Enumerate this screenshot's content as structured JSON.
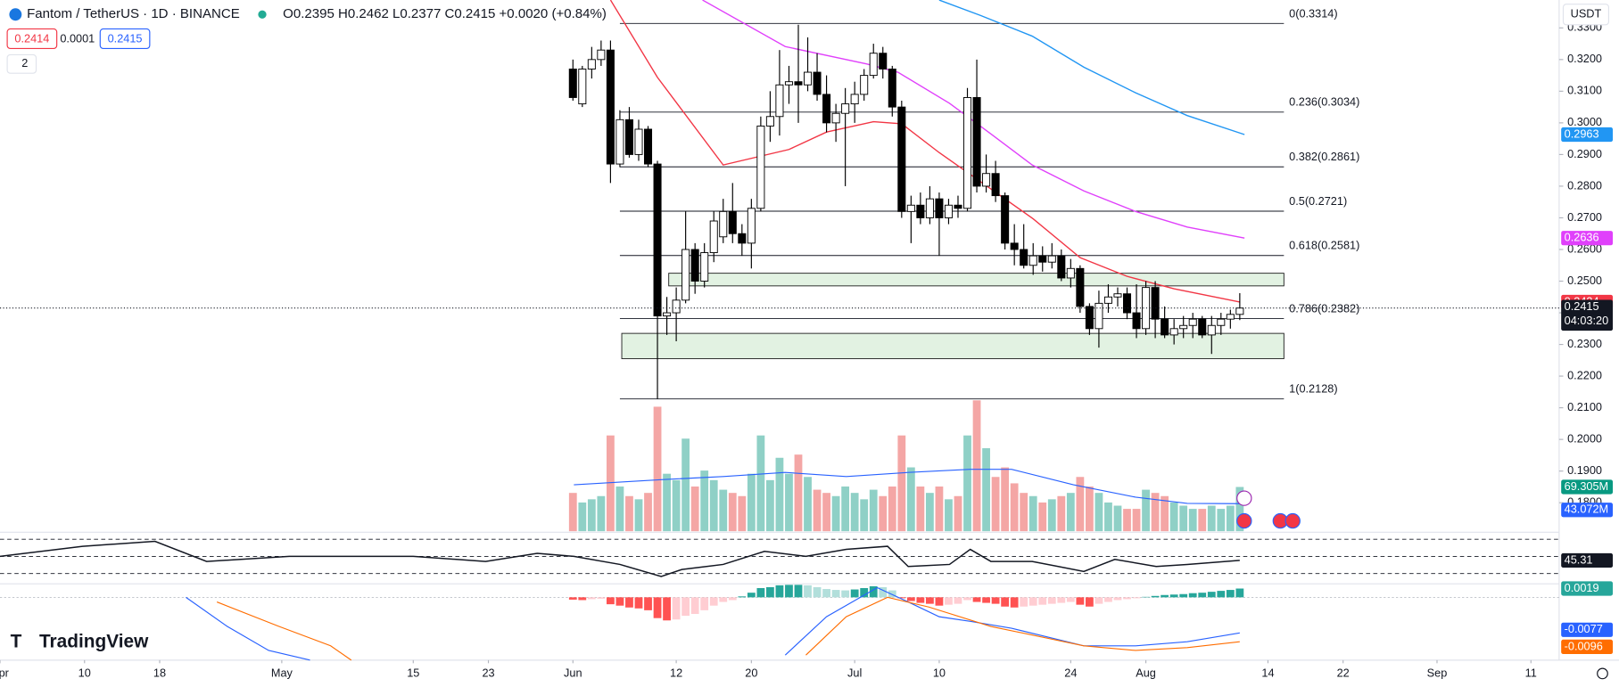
{
  "header": {
    "symbol": "Fantom / TetherUS · 1D · BINANCE",
    "ohlc": "O0.2395 H0.2462 L0.2377 C0.2415 +0.0020 (+0.84%)",
    "bid": "0.2414",
    "spread": "0.0001",
    "ask": "0.2415",
    "indicators_count": "2",
    "currency": "USDT",
    "countdown": "04:03:20",
    "brand": "TradingView"
  },
  "chart_data": [
    {
      "type": "candlestick",
      "up_color": "#ffffff",
      "down_color": "#000000",
      "grid": false,
      "x": [
        61,
        62,
        63,
        64,
        65,
        66,
        67,
        68,
        69,
        70,
        71,
        72,
        73,
        74,
        75,
        76,
        77,
        78,
        79,
        80,
        81,
        82,
        83,
        84,
        85,
        86,
        87,
        88,
        89,
        90,
        91,
        92,
        93,
        94,
        95,
        96,
        97,
        98,
        99,
        100,
        101,
        102,
        103,
        104,
        105,
        106,
        107,
        108,
        109,
        110,
        111,
        112,
        113,
        114,
        115,
        116,
        117,
        118,
        119,
        120,
        121,
        122,
        123,
        124,
        125,
        126,
        127,
        128,
        129,
        130,
        131,
        132
      ],
      "open": [
        0.317,
        0.306,
        0.317,
        0.32,
        0.323,
        0.287,
        0.301,
        0.29,
        0.298,
        0.287,
        0.239,
        0.24,
        0.244,
        0.26,
        0.25,
        0.259,
        0.264,
        0.272,
        0.265,
        0.262,
        0.273,
        0.299,
        0.302,
        0.312,
        0.313,
        0.312,
        0.316,
        0.309,
        0.3,
        0.303,
        0.306,
        0.309,
        0.315,
        0.322,
        0.317,
        0.305,
        0.272,
        0.274,
        0.27,
        0.276,
        0.27,
        0.274,
        0.273,
        0.308,
        0.28,
        0.284,
        0.277,
        0.262,
        0.26,
        0.255,
        0.258,
        0.256,
        0.258,
        0.251,
        0.254,
        0.242,
        0.235,
        0.243,
        0.245,
        0.246,
        0.24,
        0.235,
        0.248,
        0.238,
        0.233,
        0.235,
        0.236,
        0.238,
        0.233,
        0.236,
        0.238,
        0.2395
      ],
      "high": [
        0.32,
        0.318,
        0.324,
        0.326,
        0.326,
        0.304,
        0.305,
        0.301,
        0.299,
        0.288,
        0.245,
        0.248,
        0.272,
        0.262,
        0.262,
        0.272,
        0.276,
        0.281,
        0.268,
        0.276,
        0.302,
        0.31,
        0.323,
        0.318,
        0.331,
        0.327,
        0.322,
        0.315,
        0.306,
        0.311,
        0.313,
        0.317,
        0.325,
        0.324,
        0.318,
        0.307,
        0.277,
        0.278,
        0.28,
        0.278,
        0.276,
        0.277,
        0.311,
        0.32,
        0.29,
        0.288,
        0.278,
        0.268,
        0.268,
        0.262,
        0.261,
        0.262,
        0.26,
        0.257,
        0.255,
        0.243,
        0.247,
        0.249,
        0.248,
        0.248,
        0.249,
        0.25,
        0.25,
        0.242,
        0.238,
        0.239,
        0.24,
        0.239,
        0.239,
        0.24,
        0.241,
        0.2462
      ],
      "low": [
        0.307,
        0.305,
        0.314,
        0.318,
        0.281,
        0.286,
        0.289,
        0.288,
        0.286,
        0.2128,
        0.233,
        0.231,
        0.243,
        0.246,
        0.248,
        0.256,
        0.262,
        0.262,
        0.258,
        0.254,
        0.272,
        0.294,
        0.296,
        0.306,
        0.3,
        0.31,
        0.307,
        0.297,
        0.294,
        0.28,
        0.3,
        0.307,
        0.314,
        0.314,
        0.302,
        0.27,
        0.262,
        0.268,
        0.268,
        0.258,
        0.268,
        0.27,
        0.272,
        0.278,
        0.278,
        0.275,
        0.26,
        0.255,
        0.254,
        0.252,
        0.253,
        0.254,
        0.25,
        0.248,
        0.24,
        0.233,
        0.229,
        0.24,
        0.242,
        0.238,
        0.232,
        0.233,
        0.232,
        0.232,
        0.23,
        0.232,
        0.232,
        0.232,
        0.227,
        0.233,
        0.235,
        0.2377
      ],
      "close": [
        0.308,
        0.317,
        0.32,
        0.323,
        0.287,
        0.301,
        0.29,
        0.298,
        0.287,
        0.239,
        0.24,
        0.244,
        0.26,
        0.25,
        0.259,
        0.269,
        0.272,
        0.265,
        0.262,
        0.273,
        0.299,
        0.302,
        0.312,
        0.313,
        0.312,
        0.316,
        0.309,
        0.3,
        0.303,
        0.306,
        0.309,
        0.315,
        0.322,
        0.317,
        0.305,
        0.272,
        0.274,
        0.27,
        0.276,
        0.27,
        0.274,
        0.273,
        0.308,
        0.28,
        0.284,
        0.277,
        0.262,
        0.26,
        0.255,
        0.258,
        0.256,
        0.258,
        0.251,
        0.254,
        0.242,
        0.235,
        0.243,
        0.245,
        0.246,
        0.24,
        0.235,
        0.248,
        0.238,
        0.233,
        0.235,
        0.236,
        0.238,
        0.233,
        0.236,
        0.238,
        0.2395,
        0.2415
      ],
      "xlim": [
        0,
        166
      ],
      "xticks": [
        {
          "value": 0,
          "label": "Apr"
        },
        {
          "value": 9,
          "label": "10"
        },
        {
          "value": 17,
          "label": "18"
        },
        {
          "value": 30,
          "label": "May"
        },
        {
          "value": 44,
          "label": "15"
        },
        {
          "value": 52,
          "label": "23"
        },
        {
          "value": 61,
          "label": "Jun"
        },
        {
          "value": 72,
          "label": "12"
        },
        {
          "value": 80,
          "label": "20"
        },
        {
          "value": 91,
          "label": "Jul"
        },
        {
          "value": 100,
          "label": "10"
        },
        {
          "value": 114,
          "label": "24"
        },
        {
          "value": 122,
          "label": "Aug"
        },
        {
          "value": 135,
          "label": "14"
        },
        {
          "value": 143,
          "label": "22"
        },
        {
          "value": 153,
          "label": "Sep"
        },
        {
          "value": 163,
          "label": "11"
        }
      ],
      "ylim": [
        0.171,
        0.3388
      ],
      "yticks": [
        {
          "value": 0.18,
          "label": "0.1800"
        },
        {
          "value": 0.19,
          "label": "0.1900"
        },
        {
          "value": 0.2,
          "label": "0.2000"
        },
        {
          "value": 0.21,
          "label": "0.2100"
        },
        {
          "value": 0.22,
          "label": "0.2200"
        },
        {
          "value": 0.23,
          "label": "0.2300"
        },
        {
          "value": 0.24,
          "label": "0.2400"
        },
        {
          "value": 0.25,
          "label": "0.2500"
        },
        {
          "value": 0.26,
          "label": "0.2600"
        },
        {
          "value": 0.27,
          "label": "0.2700"
        },
        {
          "value": 0.28,
          "label": "0.2800"
        },
        {
          "value": 0.29,
          "label": "0.2900"
        },
        {
          "value": 0.3,
          "label": "0.3000"
        },
        {
          "value": 0.31,
          "label": "0.3100"
        },
        {
          "value": 0.32,
          "label": "0.3200"
        },
        {
          "value": 0.33,
          "label": "0.3300"
        }
      ],
      "moving_averages": [
        {
          "color": "#f23645",
          "x": [
            65,
            70,
            77,
            84,
            88,
            93,
            96,
            100,
            105,
            110,
            115,
            120,
            125,
            132
          ],
          "values": [
            0.3388,
            0.3144,
            0.2867,
            0.2916,
            0.2971,
            0.3004,
            0.2997,
            0.2906,
            0.2802,
            0.2697,
            0.2574,
            0.2515,
            0.2476,
            0.2434
          ]
        },
        {
          "color": "#e040fb",
          "x": [
            74.8,
            83.6,
            92.3,
            95.6,
            101.1,
            105.5,
            109.9,
            115.4,
            120.9,
            126.4,
            132.5
          ],
          "values": [
            0.3388,
            0.3241,
            0.3186,
            0.316,
            0.3062,
            0.2965,
            0.2867,
            0.2785,
            0.272,
            0.2671,
            0.2636
          ]
        },
        {
          "color": "#2196f3",
          "x": [
            100,
            104.4,
            109.9,
            115.4,
            120.9,
            126.4,
            132.5
          ],
          "values": [
            0.3388,
            0.3339,
            0.3274,
            0.3176,
            0.3095,
            0.3023,
            0.2963
          ]
        }
      ],
      "fib_range": [
        66,
        136.7
      ],
      "fib_levels": [
        {
          "label": "0(0.3314)",
          "value": 0.3314
        },
        {
          "label": "0.236(0.3034)",
          "value": 0.3034
        },
        {
          "label": "0.382(0.2861)",
          "value": 0.2861
        },
        {
          "label": "0.5(0.2721)",
          "value": 0.2721
        },
        {
          "label": "0.618(0.2581)",
          "value": 0.2581
        },
        {
          "label": "0.786(0.2382)",
          "value": 0.2382
        },
        {
          "label": "1(0.2128)",
          "value": 0.2128
        }
      ],
      "zones": [
        {
          "x_range": [
            71.2,
            136.7
          ],
          "y_range": [
            0.2485,
            0.2525
          ]
        },
        {
          "x_range": [
            66.2,
            136.7
          ],
          "y_range": [
            0.2255,
            0.2335
          ]
        }
      ],
      "zone_color": "#e2f2e2"
    },
    {
      "type": "volume",
      "up_color": "#8fd0c6",
      "down_color": "#f4a6a5",
      "last_color": "#089981",
      "ylim": [
        0,
        210
      ],
      "values": [
        60,
        45,
        50,
        55,
        150,
        70,
        55,
        50,
        60,
        195,
        90,
        80,
        145,
        70,
        95,
        80,
        65,
        60,
        55,
        90,
        150,
        80,
        115,
        90,
        120,
        85,
        65,
        60,
        55,
        70,
        60,
        50,
        65,
        55,
        70,
        150,
        100,
        70,
        60,
        70,
        50,
        55,
        150,
        205,
        130,
        85,
        100,
        75,
        60,
        55,
        45,
        50,
        55,
        60,
        85,
        70,
        60,
        45,
        40,
        35,
        35,
        65,
        60,
        55,
        45,
        40,
        35,
        35,
        40,
        35,
        40,
        69.305
      ],
      "last_value_label": "69.305M",
      "ma": {
        "color": "#2962ff",
        "x": [
          61.1,
          70.4,
          77,
          83.6,
          90.1,
          96.7,
          103.3,
          107.7,
          114.3,
          120.9,
          126.4,
          132
        ],
        "values": [
          72.7,
          80.8,
          85.6,
          92,
          85.6,
          92,
          97,
          97,
          72.7,
          53.3,
          43.6,
          43.072
        ],
        "last_value_label": "43.072M"
      }
    },
    {
      "type": "rsi",
      "color": "#131722",
      "ylim": [
        18,
        77
      ],
      "bands": [
        70,
        50,
        30
      ],
      "x": [
        0,
        8.8,
        16.5,
        22,
        30.8,
        44,
        51.7,
        57.2,
        61.1,
        66,
        70.4,
        72.6,
        77,
        81.4,
        85.8,
        90.1,
        94.5,
        96.7,
        101.1,
        103.3,
        105.5,
        109.9,
        115.4,
        118.7,
        123.1,
        126.4,
        132
      ],
      "values": [
        50,
        61.8,
        67.6,
        44.1,
        50,
        50,
        44.1,
        53.5,
        50,
        40.6,
        26.5,
        34.7,
        40.6,
        55.9,
        50,
        58.2,
        61.8,
        38.2,
        40.6,
        58.2,
        44.1,
        44.1,
        32.4,
        46.5,
        38.2,
        40.6,
        45.31
      ]
    },
    {
      "type": "macd",
      "ylim": [
        -0.0136,
        0.0027
      ],
      "colors": [
        "#26a69a",
        "#b2dfdb",
        "#ffcdd2",
        "#ff5252"
      ],
      "histogram": [
        -0.0005,
        -0.0006,
        -0.0004,
        -0.0003,
        -0.0015,
        -0.0018,
        -0.0022,
        -0.0024,
        -0.0028,
        -0.0045,
        -0.005,
        -0.0048,
        -0.004,
        -0.0036,
        -0.0028,
        -0.0018,
        -0.001,
        -0.0006,
        0.0002,
        0.001,
        0.002,
        0.0022,
        0.0026,
        0.0027,
        0.0027,
        0.0026,
        0.0022,
        0.0018,
        0.0016,
        0.0015,
        0.0017,
        0.002,
        0.0024,
        0.0022,
        0.0015,
        -0.0002,
        -0.0008,
        -0.0012,
        -0.0014,
        -0.0018,
        -0.0016,
        -0.0014,
        -0.0006,
        -0.001,
        -0.0012,
        -0.0014,
        -0.002,
        -0.0022,
        -0.002,
        -0.0018,
        -0.0016,
        -0.0014,
        -0.0012,
        -0.001,
        -0.0016,
        -0.002,
        -0.0014,
        -0.001,
        -0.0006,
        -0.0004,
        -0.0002,
        0.0001,
        0.0003,
        0.0005,
        0.0006,
        0.0007,
        0.0009,
        0.001,
        0.0012,
        0.0014,
        0.0016,
        0.0019
      ],
      "macd": {
        "color": "#2962ff",
        "x": [
          19.8,
          24.2,
          28.6,
          33,
          60,
          83.6,
          88,
          93.4,
          96.7,
          100,
          103.3,
          107.7,
          115.4,
          120.9,
          126.4,
          132
        ],
        "values": [
          0,
          -0.0063,
          -0.0115,
          -0.0136,
          null,
          -0.0125,
          -0.0042,
          0.0021,
          -0.001,
          -0.0042,
          -0.0052,
          -0.0067,
          -0.0105,
          -0.0105,
          -0.0096,
          -0.0077
        ]
      },
      "signal": {
        "color": "#ff6d00",
        "x": [
          23.1,
          29.7,
          35.2,
          37.4,
          60,
          85.8,
          90.1,
          94.5,
          98.9,
          105.5,
          115.4,
          120.9,
          126.4,
          132
        ],
        "values": [
          -0.001,
          -0.0063,
          -0.0105,
          -0.0136,
          null,
          -0.0125,
          -0.0042,
          0,
          -0.0021,
          -0.0063,
          -0.0105,
          -0.0115,
          -0.0109,
          -0.0096
        ]
      }
    }
  ]
}
